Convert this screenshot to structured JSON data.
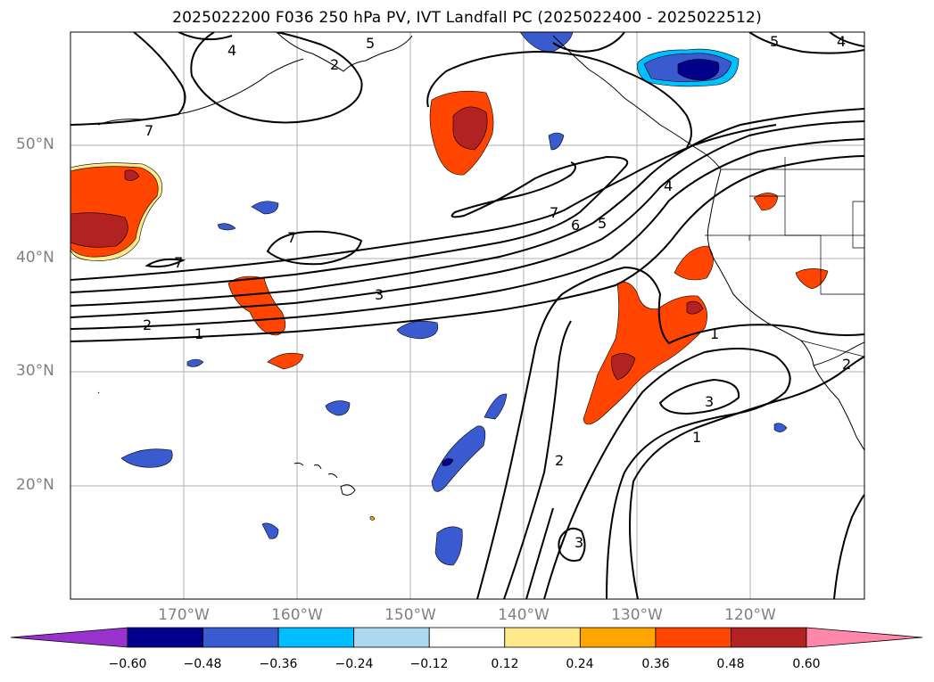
{
  "title": "2025022200 F036 250 hPa PV, IVT Landfall PC (2025022400 - 2025022512)",
  "lat_labels": [
    "50°N",
    "40°N",
    "30°N",
    "20°N"
  ],
  "lon_labels": [
    "170°W",
    "160°W",
    "150°W",
    "140°W",
    "130°W",
    "120°W"
  ],
  "colorbar": {
    "ticks": [
      "−0.60",
      "−0.48",
      "−0.36",
      "−0.24",
      "−0.12",
      "0.12",
      "0.24",
      "0.36",
      "0.48",
      "0.60"
    ],
    "colors": [
      "#9932cc",
      "#00008b",
      "#3a5bcf",
      "#00bfff",
      "#add8f0",
      "#ffffff",
      "#ffe98a",
      "#ffa500",
      "#ff4500",
      "#b22222",
      "#ff88aa"
    ]
  },
  "contour_labels": [
    "4",
    "5",
    "5",
    "4",
    "7",
    "7",
    "7",
    "7",
    "6",
    "5",
    "4",
    "3",
    "2",
    "1",
    "1",
    "3",
    "2",
    "1",
    "2",
    "3",
    "2"
  ]
}
